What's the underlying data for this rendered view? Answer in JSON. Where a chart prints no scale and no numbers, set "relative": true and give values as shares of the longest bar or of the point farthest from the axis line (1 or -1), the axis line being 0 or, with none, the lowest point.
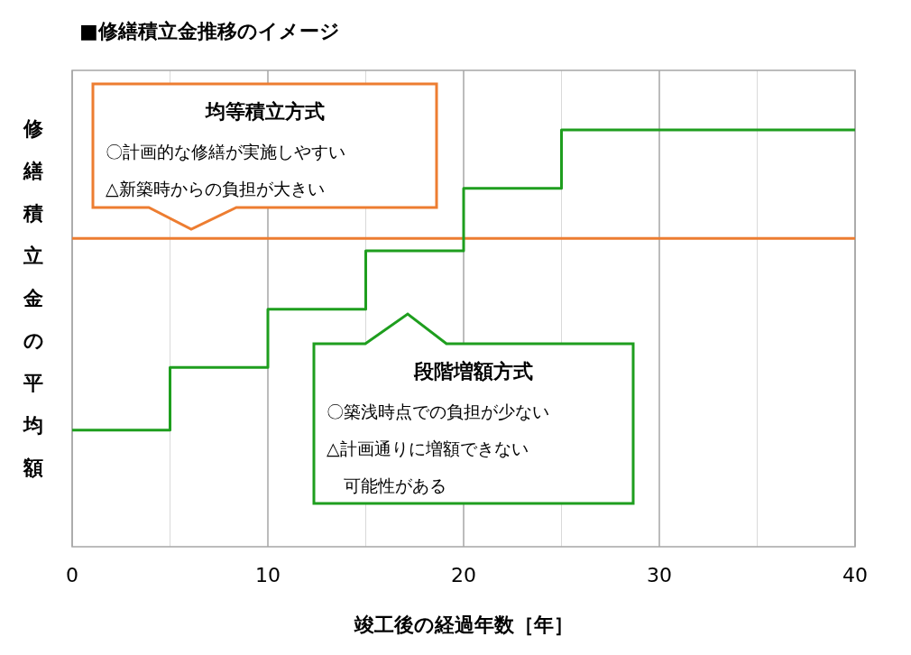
{
  "chart_data": {
    "type": "step",
    "title": "■修繕積立金推移のイメージ",
    "xlabel": "竣工後の経過年数［年］",
    "ylabel": "修繕積立金の平均額",
    "relative": true,
    "xlim": [
      0,
      40
    ],
    "xticks": [
      0,
      {
        "value": 5,
        "label": null
      },
      10,
      {
        "value": 15,
        "label": null
      },
      20,
      {
        "value": 25,
        "label": null
      },
      30,
      {
        "value": 35,
        "label": null
      },
      40
    ],
    "grid": "x",
    "series": [
      {
        "type": "line",
        "color": "#ed7d31",
        "x": [
          0,
          40
        ],
        "values": [
          0.74,
          0.74
        ]
      },
      {
        "color": "#1e9e1e",
        "x": [
          0,
          5,
          10,
          15,
          20,
          25,
          40
        ],
        "values": [
          0.28,
          0.43,
          0.57,
          0.71,
          0.86,
          1,
          1
        ]
      }
    ],
    "annotations": [
      "均等積立方式",
      "〇計画的な修繕が実施しやすい",
      "△新築時からの負担が大きい",
      "段階増額方式",
      "〇築浅時点での負担が少ない",
      "△計画通りに増額できない",
      "　可能性がある"
    ]
  }
}
